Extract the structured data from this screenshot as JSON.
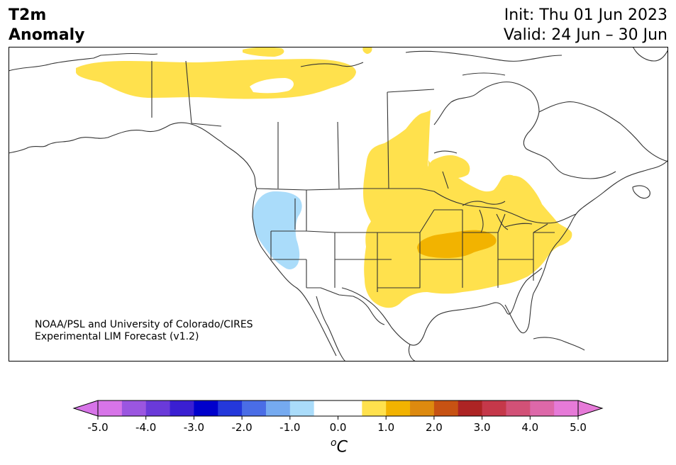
{
  "header": {
    "title_line1": "T2m",
    "title_line2": "Anomaly",
    "init": "Init: Thu 01 Jun 2023",
    "valid": "Valid: 24 Jun – 30 Jun"
  },
  "credit": {
    "line1": "NOAA/PSL and University of Colorado/CIRES",
    "line2": "Experimental LIM Forecast (v1.2)"
  },
  "colorbar": {
    "unit_prefix": "o",
    "unit": "C",
    "ticks": [
      "-5.0",
      "-4.0",
      "-3.0",
      "-2.0",
      "-1.0",
      "0.0",
      "1.0",
      "2.0",
      "3.0",
      "4.0",
      "5.0"
    ],
    "colors": [
      "#d774e8",
      "#9b56e0",
      "#6a3ad9",
      "#3a1fd2",
      "#0000cc",
      "#2438db",
      "#4a6de6",
      "#75aaf0",
      "#aadcfa",
      "#ffffff",
      "#ffffff",
      "#ffe14d",
      "#f2b300",
      "#dd8a0f",
      "#c75213",
      "#ad2424",
      "#c5384a",
      "#d25177",
      "#dd68a9",
      "#e67ad8"
    ],
    "under_color": "#d774e8",
    "over_color": "#e67ad8"
  },
  "anomaly_regions": [
    {
      "region": "northern Canada",
      "category": "+0.5 to +1.0",
      "color": "#ffe14d"
    },
    {
      "region": "central & eastern United States",
      "category": "+0.5 to +1.0",
      "color": "#ffe14d"
    },
    {
      "region": "Midwest (Missouri–Illinois–Indiana)",
      "category": "+1.0 to +1.5",
      "color": "#f2b300"
    },
    {
      "region": "Pacific Northwest & northern California",
      "category": "-1.0 to -0.5",
      "color": "#aadcfa"
    },
    {
      "region": "Canadian Arctic islands",
      "category": "-0.5 to +0.5",
      "color": "#ffffff"
    }
  ]
}
